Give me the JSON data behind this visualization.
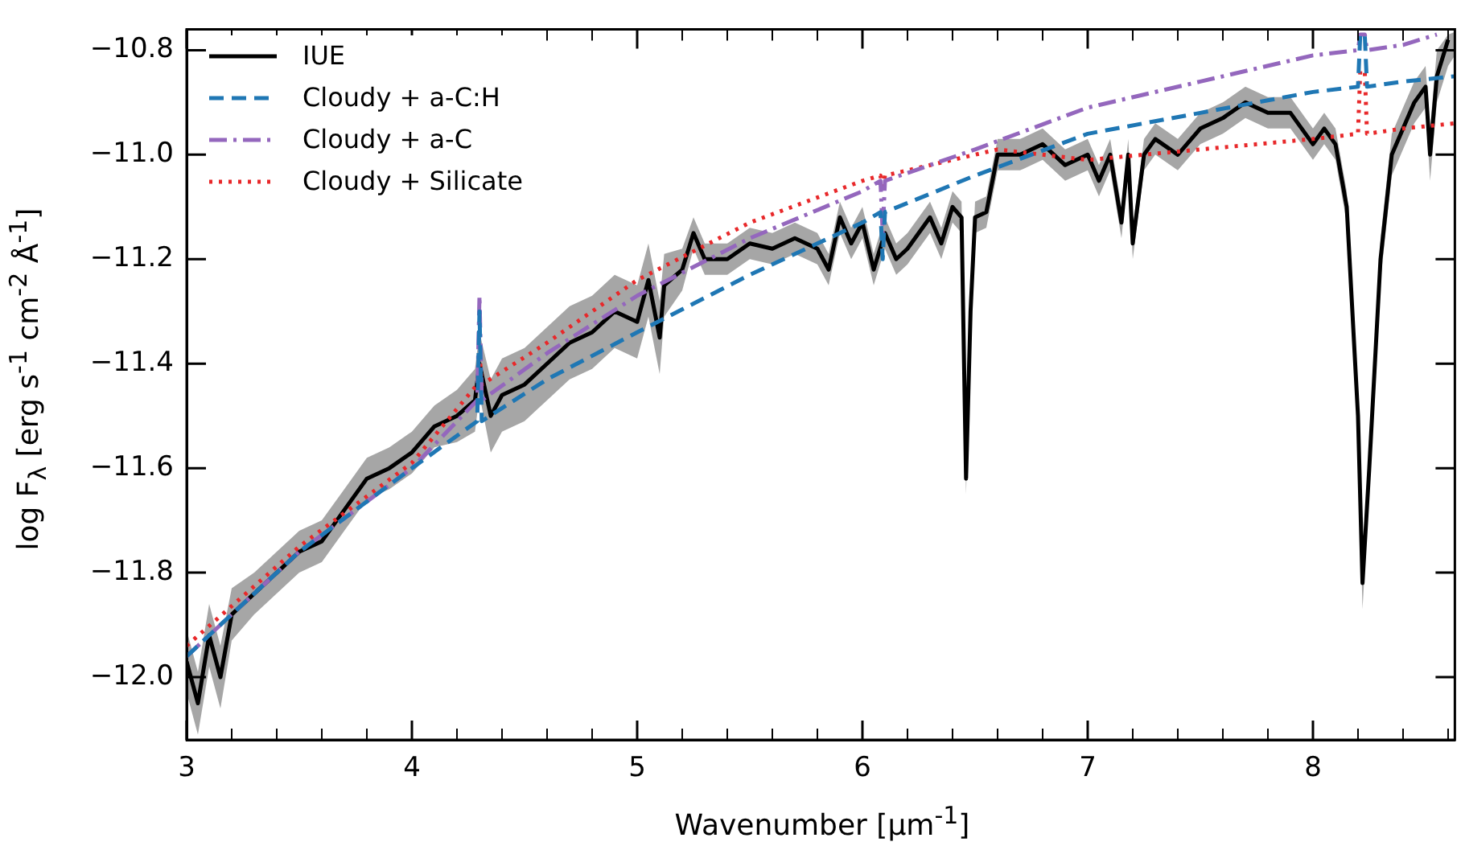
{
  "chart_data": {
    "type": "line",
    "xlabel": "Wavenumber [μm$^{-1}$]",
    "ylabel": "log F$_{λ}$ [erg s$^{-1}$ cm$^{-2}$ Å$^{-1}$]",
    "legend": "top left",
    "grid": false,
    "xlim": [
      3,
      8.63
    ],
    "ylim": [
      -12.12,
      -10.76
    ],
    "xticks": [
      3,
      {
        "value": 3.2,
        "label": null
      },
      {
        "value": 3.4,
        "label": null
      },
      {
        "value": 3.6,
        "label": null
      },
      {
        "value": 3.8,
        "label": null
      },
      4,
      {
        "value": 4.2,
        "label": null
      },
      {
        "value": 4.4,
        "label": null
      },
      {
        "value": 4.6,
        "label": null
      },
      {
        "value": 4.8,
        "label": null
      },
      5,
      {
        "value": 5.2,
        "label": null
      },
      {
        "value": 5.4,
        "label": null
      },
      {
        "value": 5.6,
        "label": null
      },
      {
        "value": 5.8,
        "label": null
      },
      6,
      {
        "value": 6.2,
        "label": null
      },
      {
        "value": 6.4,
        "label": null
      },
      {
        "value": 6.6,
        "label": null
      },
      {
        "value": 6.8,
        "label": null
      },
      7,
      {
        "value": 7.2,
        "label": null
      },
      {
        "value": 7.4,
        "label": null
      },
      {
        "value": 7.6,
        "label": null
      },
      {
        "value": 7.8,
        "label": null
      },
      8,
      {
        "value": 8.2,
        "label": null
      },
      {
        "value": 8.4,
        "label": null
      },
      {
        "value": 8.6,
        "label": null
      }
    ],
    "yticks": [
      {
        "value": -12,
        "label": "−12.0"
      },
      {
        "value": -11.8,
        "label": "−11.8"
      },
      {
        "value": -11.6,
        "label": "−11.6"
      },
      {
        "value": -11.4,
        "label": "−11.4"
      },
      {
        "value": -11.2,
        "label": "−11.2"
      },
      {
        "value": -11,
        "label": "−11.0"
      },
      {
        "value": -10.8,
        "label": "−10.8"
      }
    ],
    "series": [
      {
        "name": "IUE",
        "color": "#000000",
        "line_style": "solid",
        "x": [
          3.0,
          3.05,
          3.1,
          3.15,
          3.2,
          3.3,
          3.4,
          3.5,
          3.6,
          3.7,
          3.8,
          3.9,
          4.0,
          4.1,
          4.2,
          4.28,
          4.3,
          4.35,
          4.4,
          4.5,
          4.6,
          4.7,
          4.8,
          4.9,
          5.0,
          5.05,
          5.1,
          5.12,
          5.2,
          5.25,
          5.3,
          5.4,
          5.5,
          5.6,
          5.7,
          5.8,
          5.85,
          5.9,
          5.95,
          6.0,
          6.05,
          6.1,
          6.15,
          6.2,
          6.3,
          6.35,
          6.4,
          6.44,
          6.46,
          6.48,
          6.5,
          6.55,
          6.6,
          6.7,
          6.8,
          6.9,
          7.0,
          7.05,
          7.1,
          7.15,
          7.18,
          7.2,
          7.25,
          7.3,
          7.4,
          7.5,
          7.6,
          7.7,
          7.8,
          7.9,
          8.0,
          8.05,
          8.1,
          8.15,
          8.2,
          8.22,
          8.25,
          8.3,
          8.35,
          8.45,
          8.5,
          8.52,
          8.55,
          8.6,
          8.63
        ],
        "values": [
          -11.97,
          -12.05,
          -11.92,
          -12.0,
          -11.88,
          -11.84,
          -11.8,
          -11.76,
          -11.74,
          -11.68,
          -11.62,
          -11.6,
          -11.57,
          -11.52,
          -11.5,
          -11.47,
          -11.4,
          -11.5,
          -11.46,
          -11.44,
          -11.4,
          -11.36,
          -11.34,
          -11.3,
          -11.32,
          -11.24,
          -11.35,
          -11.25,
          -11.22,
          -11.15,
          -11.2,
          -11.2,
          -11.17,
          -11.18,
          -11.16,
          -11.18,
          -11.22,
          -11.12,
          -11.17,
          -11.13,
          -11.22,
          -11.15,
          -11.2,
          -11.18,
          -11.12,
          -11.17,
          -11.1,
          -11.12,
          -11.62,
          -11.3,
          -11.12,
          -11.11,
          -11.0,
          -11.0,
          -10.98,
          -11.02,
          -11.0,
          -11.05,
          -11.0,
          -11.13,
          -11.0,
          -11.17,
          -11.0,
          -10.97,
          -11.0,
          -10.95,
          -10.93,
          -10.9,
          -10.92,
          -10.92,
          -10.98,
          -10.95,
          -10.98,
          -11.1,
          -11.5,
          -11.82,
          -11.6,
          -11.2,
          -11.0,
          -10.9,
          -10.87,
          -11.0,
          -10.85,
          -10.78,
          null
        ],
        "lower": [
          -12.03,
          -12.11,
          -11.98,
          -12.06,
          -11.93,
          -11.88,
          -11.84,
          -11.8,
          -11.78,
          -11.72,
          -11.66,
          -11.64,
          -11.61,
          -11.56,
          -11.55,
          -11.53,
          -11.46,
          -11.57,
          -11.53,
          -11.51,
          -11.47,
          -11.43,
          -11.41,
          -11.37,
          -11.39,
          -11.31,
          -11.42,
          -11.31,
          -11.26,
          -11.18,
          -11.23,
          -11.23,
          -11.2,
          -11.21,
          -11.19,
          -11.21,
          -11.25,
          -11.15,
          -11.2,
          -11.16,
          -11.25,
          -11.18,
          -11.23,
          -11.21,
          -11.15,
          -11.2,
          -11.13,
          -11.15,
          -11.65,
          -11.33,
          -11.15,
          -11.14,
          -11.03,
          -11.03,
          -11.01,
          -11.05,
          -11.03,
          -11.08,
          -11.03,
          -11.16,
          -11.03,
          -11.2,
          -11.03,
          -11.0,
          -11.03,
          -10.98,
          -10.96,
          -10.93,
          -10.95,
          -10.95,
          -11.01,
          -10.98,
          -11.01,
          -11.13,
          -11.54,
          -11.87,
          -11.64,
          -11.24,
          -11.04,
          -10.94,
          -10.91,
          -11.05,
          -10.9,
          -10.83,
          -10.81
        ],
        "upper": [
          -11.91,
          -11.99,
          -11.86,
          -11.94,
          -11.83,
          -11.8,
          -11.76,
          -11.72,
          -11.7,
          -11.64,
          -11.58,
          -11.56,
          -11.53,
          -11.48,
          -11.45,
          -11.41,
          -11.34,
          -11.43,
          -11.39,
          -11.37,
          -11.33,
          -11.29,
          -11.27,
          -11.23,
          -11.25,
          -11.17,
          -11.28,
          -11.19,
          -11.18,
          -11.12,
          -11.17,
          -11.17,
          -11.14,
          -11.15,
          -11.13,
          -11.15,
          -11.19,
          -11.09,
          -11.14,
          -11.1,
          -11.19,
          -11.12,
          -11.17,
          -11.15,
          -11.09,
          -11.14,
          -11.07,
          -11.09,
          -11.59,
          -11.27,
          -11.09,
          -11.08,
          -10.97,
          -10.97,
          -10.95,
          -10.99,
          -10.97,
          -11.02,
          -10.97,
          -11.1,
          -10.97,
          -11.14,
          -10.97,
          -10.94,
          -10.97,
          -10.92,
          -10.9,
          -10.87,
          -10.89,
          -10.89,
          -10.95,
          -10.92,
          -10.95,
          -11.07,
          -11.46,
          -11.77,
          -11.56,
          -11.16,
          -10.96,
          -10.86,
          -10.83,
          -10.95,
          -10.8,
          -10.77,
          -10.765
        ]
      },
      {
        "name": "Cloudy + a-C:H",
        "color": "#1f77b4",
        "line_style": "dashed",
        "x": [
          3.0,
          3.5,
          4.0,
          4.29,
          4.3,
          4.31,
          4.6,
          5.0,
          5.5,
          6.0,
          6.08,
          6.09,
          6.1,
          6.5,
          7.0,
          7.5,
          8.0,
          8.2,
          8.21,
          8.23,
          8.24,
          8.4,
          8.63
        ],
        "values": [
          -11.96,
          -11.76,
          -11.6,
          -11.51,
          -11.3,
          -11.51,
          -11.43,
          -11.34,
          -11.23,
          -11.13,
          -11.11,
          -11.2,
          -11.11,
          -11.04,
          -10.96,
          -10.92,
          -10.88,
          -10.87,
          -10.77,
          -10.77,
          -10.87,
          -10.86,
          -10.85
        ]
      },
      {
        "name": "Cloudy + a-C",
        "color": "#9467bd",
        "line_style": "dashdot",
        "x": [
          3.0,
          3.5,
          4.0,
          4.29,
          4.3,
          4.31,
          4.6,
          5.0,
          5.5,
          6.0,
          6.08,
          6.09,
          6.1,
          6.5,
          7.0,
          7.5,
          8.0,
          8.2,
          8.21,
          8.23,
          8.24,
          8.4,
          8.55
        ],
        "values": [
          -11.96,
          -11.76,
          -11.6,
          -11.47,
          -11.27,
          -11.47,
          -11.38,
          -11.27,
          -11.16,
          -11.07,
          -11.05,
          -11.15,
          -11.05,
          -10.99,
          -10.91,
          -10.86,
          -10.81,
          -10.8,
          -10.77,
          -10.77,
          -10.8,
          -10.79,
          -10.77
        ]
      },
      {
        "name": "Cloudy + Silicate",
        "color": "#e8282a",
        "line_style": "dotted",
        "x": [
          3.0,
          3.5,
          4.0,
          4.29,
          4.3,
          4.31,
          4.6,
          5.0,
          5.5,
          6.0,
          6.08,
          6.09,
          6.1,
          6.6,
          7.0,
          7.5,
          8.0,
          8.2,
          8.21,
          8.23,
          8.24,
          8.4,
          8.63
        ],
        "values": [
          -11.94,
          -11.75,
          -11.59,
          -11.44,
          -11.38,
          -11.44,
          -11.36,
          -11.24,
          -11.13,
          -11.05,
          -11.04,
          -11.07,
          -11.04,
          -10.99,
          -11.01,
          -10.99,
          -10.97,
          -10.96,
          -10.84,
          -10.84,
          -10.96,
          -10.95,
          -10.94
        ]
      }
    ]
  }
}
